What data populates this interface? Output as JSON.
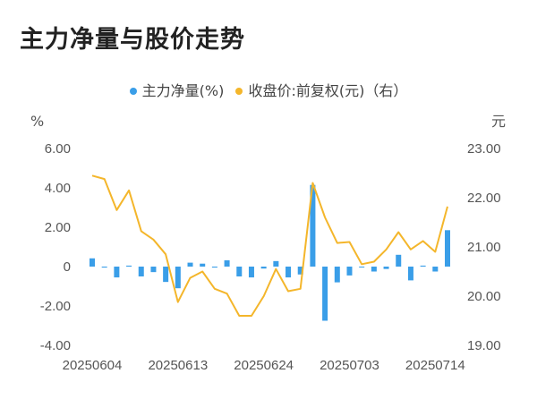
{
  "title": "主力净量与股价走势",
  "legend": {
    "left_label": "主力净量(%)",
    "right_label": "收盘价:前复权(元)（右）"
  },
  "axis": {
    "left_unit": "%",
    "right_unit": "元"
  },
  "chart_data": {
    "type": "bar+line",
    "title": "主力净量与股价走势",
    "x_tick_labels": [
      "20250604",
      "20250613",
      "20250624",
      "20250703",
      "20250714"
    ],
    "left_ticks": [
      "6.00",
      "4.00",
      "2.00",
      "0",
      "-2.00",
      "-4.00"
    ],
    "right_ticks": [
      "23.00",
      "22.00",
      "21.00",
      "20.00",
      "19.00"
    ],
    "ylim_left": [
      -4,
      6
    ],
    "ylim_right": [
      19,
      23
    ],
    "colors": {
      "bar": "#3a9ee8",
      "line": "#f4b62b"
    },
    "series": [
      {
        "name": "主力净量(%)",
        "type": "bar",
        "axis": "left",
        "values": [
          0.42,
          -0.05,
          -0.55,
          0.05,
          -0.5,
          -0.28,
          -0.78,
          -1.1,
          0.2,
          0.15,
          -0.05,
          0.32,
          -0.5,
          -0.55,
          -0.1,
          0.28,
          -0.55,
          -0.4,
          4.15,
          -2.75,
          -0.8,
          -0.45,
          0.0,
          -0.25,
          -0.12,
          0.6,
          -0.7,
          0.05,
          -0.25,
          1.85
        ]
      },
      {
        "name": "收盘价:前复权(元)（右）",
        "type": "line",
        "axis": "right",
        "values": [
          22.45,
          22.38,
          21.75,
          22.15,
          21.32,
          21.15,
          20.85,
          19.88,
          20.37,
          20.5,
          20.15,
          20.05,
          19.6,
          19.6,
          20.0,
          20.55,
          20.1,
          20.15,
          22.3,
          21.6,
          21.08,
          21.1,
          20.65,
          20.7,
          20.95,
          21.3,
          20.95,
          21.12,
          20.9,
          21.82
        ]
      }
    ]
  }
}
